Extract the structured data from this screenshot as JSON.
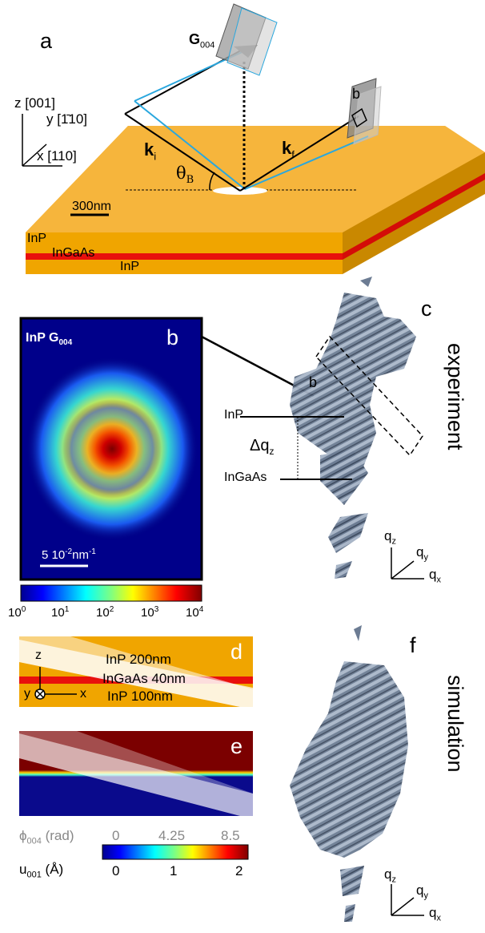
{
  "panels": {
    "a": "a",
    "b": "b",
    "c": "c",
    "d": "d",
    "e": "e",
    "f": "f"
  },
  "panel_a": {
    "axis_z": "z [001]",
    "axis_y": "y [1̄10]",
    "axis_x": "x [110]",
    "scale_bar": "300nm",
    "layer_top": "InP",
    "layer_mid": "InGaAs",
    "layer_bottom": "InP",
    "g_vector": "G",
    "g_sub": "004",
    "ki": "k",
    "ki_sub": "i",
    "kf": "k",
    "kf_sub": "f",
    "theta": "θ",
    "theta_sub": "B",
    "detector_label": "b"
  },
  "panel_b": {
    "title": "InP G",
    "title_sub": "004",
    "scale_bar": "5 10",
    "scale_exp": "-2",
    "scale_unit": "nm",
    "scale_unit_exp": "-1",
    "colorbar_ticks": [
      {
        "base": "10",
        "exp": "0"
      },
      {
        "base": "10",
        "exp": "1"
      },
      {
        "base": "10",
        "exp": "2"
      },
      {
        "base": "10",
        "exp": "3"
      },
      {
        "base": "10",
        "exp": "4"
      }
    ]
  },
  "panel_c": {
    "side_label": "experiment",
    "inp": "InP",
    "ingaas": "InGaAs",
    "delta_q": "Δq",
    "delta_q_sub": "z",
    "box_label": "b",
    "qz": "q",
    "qz_sub": "z",
    "qy": "q",
    "qy_sub": "y",
    "qx": "q",
    "qx_sub": "x"
  },
  "panel_d": {
    "axis_z": "z",
    "axis_y": "y",
    "axis_x": "x",
    "layer_top": "InP  200nm",
    "layer_mid": "InGaAs  40nm",
    "layer_bottom": "InP  100nm"
  },
  "panel_e": {
    "phi_label": "ϕ",
    "phi_sub": "004",
    "phi_unit": " (rad)",
    "phi_ticks": [
      "0",
      "4.25",
      "8.5"
    ],
    "u_label": "u",
    "u_sub": "001",
    "u_unit": " (Å)",
    "u_ticks": [
      "0",
      "1",
      "2"
    ]
  },
  "panel_f": {
    "side_label": "simulation",
    "qz": "q",
    "qz_sub": "z",
    "qy": "q",
    "qy_sub": "y",
    "qx": "q",
    "qx_sub": "x"
  },
  "colors": {
    "inp_orange": "#f0a500",
    "inp_top": "#f5b43a",
    "inp_side": "#c98800",
    "ingaas_red": "#e8100c",
    "beam_blue": "#2aa7de",
    "phase_red": "#7b0000",
    "phase_blue": "#0a0a8c",
    "iso_gray": "#6f7f95"
  }
}
